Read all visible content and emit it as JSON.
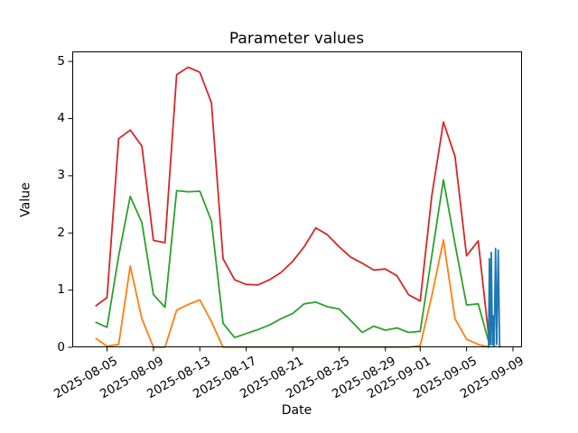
{
  "chart_data": {
    "type": "line",
    "title": "Parameter values",
    "xlabel": "Date",
    "ylabel": "Value",
    "grid": false,
    "legend": null,
    "background_color": "#ffffff",
    "axes_color": "#000000",
    "ylim": [
      0,
      5.16
    ],
    "yticks": [
      0,
      1,
      2,
      3,
      4,
      5
    ],
    "x_start_date": "2025-08-04",
    "x_unit": "days since 2025-08-04",
    "xlim_days": [
      -2.0,
      36.7
    ],
    "xticks": [
      {
        "label": "2025-08-05",
        "day": 1
      },
      {
        "label": "2025-08-09",
        "day": 5
      },
      {
        "label": "2025-08-13",
        "day": 9
      },
      {
        "label": "2025-08-17",
        "day": 13
      },
      {
        "label": "2025-08-21",
        "day": 17
      },
      {
        "label": "2025-08-25",
        "day": 21
      },
      {
        "label": "2025-08-29",
        "day": 25
      },
      {
        "label": "2025-09-01",
        "day": 28
      },
      {
        "label": "2025-09-05",
        "day": 32
      },
      {
        "label": "2025-09-09",
        "day": 36
      }
    ],
    "dates": [
      "2025-08-04",
      "2025-08-05",
      "2025-08-06",
      "2025-08-07",
      "2025-08-08",
      "2025-08-09",
      "2025-08-10",
      "2025-08-11",
      "2025-08-12",
      "2025-08-13",
      "2025-08-14",
      "2025-08-15",
      "2025-08-16",
      "2025-08-17",
      "2025-08-18",
      "2025-08-19",
      "2025-08-20",
      "2025-08-21",
      "2025-08-22",
      "2025-08-23",
      "2025-08-24",
      "2025-08-25",
      "2025-08-26",
      "2025-08-27",
      "2025-08-28",
      "2025-08-29",
      "2025-08-30",
      "2025-08-31",
      "2025-09-01",
      "2025-09-02",
      "2025-09-03",
      "2025-09-04",
      "2025-09-05",
      "2025-09-06",
      "2025-09-07"
    ],
    "series": [
      {
        "name": "red",
        "color": "#d62728",
        "x_mode": "daily",
        "values": [
          0.72,
          0.87,
          3.65,
          3.8,
          3.52,
          1.87,
          1.83,
          4.77,
          4.9,
          4.81,
          4.28,
          1.55,
          1.18,
          1.1,
          1.09,
          1.18,
          1.31,
          1.5,
          1.76,
          2.09,
          1.97,
          1.76,
          1.58,
          1.47,
          1.35,
          1.37,
          1.25,
          0.92,
          0.81,
          2.65,
          3.94,
          3.34,
          1.6,
          1.86,
          0.03
        ]
      },
      {
        "name": "green",
        "color": "#2ca02c",
        "x_mode": "daily",
        "values": [
          0.44,
          0.35,
          1.6,
          2.64,
          2.18,
          0.92,
          0.7,
          2.74,
          2.72,
          2.73,
          2.21,
          0.42,
          0.17,
          0.24,
          0.31,
          0.39,
          0.5,
          0.59,
          0.76,
          0.79,
          0.71,
          0.67,
          0.47,
          0.26,
          0.37,
          0.3,
          0.34,
          0.26,
          0.28,
          1.6,
          2.93,
          1.81,
          0.74,
          0.76,
          0.03
        ]
      },
      {
        "name": "orange",
        "color": "#ff7f0e",
        "x_mode": "daily",
        "values": [
          0.16,
          0.02,
          0.05,
          1.42,
          0.5,
          0.0,
          0.0,
          0.65,
          0.75,
          0.83,
          0.45,
          0.0,
          0.0,
          0.0,
          0.0,
          0.0,
          0.0,
          0.0,
          0.0,
          0.0,
          0.0,
          0.0,
          0.0,
          0.0,
          0.0,
          0.0,
          0.0,
          0.0,
          0.03,
          0.9,
          1.88,
          0.5,
          0.14,
          0.05,
          0.0
        ]
      },
      {
        "name": "blue",
        "color": "#1f77b4",
        "x_mode": "explicit",
        "x_days": [
          33.8,
          33.9,
          33.97,
          34.05,
          34.13,
          34.22,
          34.3,
          34.38,
          34.5,
          34.6,
          34.73,
          34.85,
          34.95
        ],
        "values": [
          0.0,
          0.03,
          1.55,
          0.05,
          1.66,
          0.04,
          0.55,
          0.02,
          1.73,
          0.05,
          1.7,
          0.02,
          0.0
        ]
      }
    ]
  }
}
